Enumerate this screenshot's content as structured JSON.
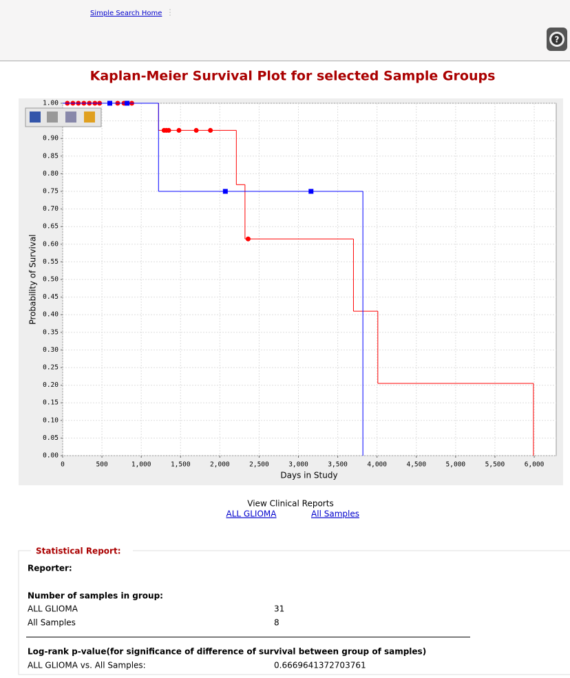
{
  "header": {
    "link": "Simple Search Home"
  },
  "chart_data": {
    "type": "survival-step",
    "title": "Kaplan-Meier Survival Plot for selected Sample Groups",
    "xlabel": "Days in Study",
    "ylabel": "Probability of Survival",
    "xlim": [
      0,
      6280
    ],
    "ylim": [
      0,
      1
    ],
    "xticks": [
      0,
      500,
      {
        "value": 1000,
        "label": "1,000"
      },
      {
        "value": 1500,
        "label": "1,500"
      },
      {
        "value": 2000,
        "label": "2,000"
      },
      {
        "value": 2500,
        "label": "2,500"
      },
      {
        "value": 3000,
        "label": "3,000"
      },
      {
        "value": 3500,
        "label": "3,500"
      },
      {
        "value": 4000,
        "label": "4,000"
      },
      {
        "value": 4500,
        "label": "4,500"
      },
      {
        "value": 5000,
        "label": "5,000"
      },
      {
        "value": 5500,
        "label": "5,500"
      },
      {
        "value": 6000,
        "label": "6,000"
      }
    ],
    "yticks": [
      {
        "value": 0,
        "label": "0.00"
      },
      {
        "value": 0.05,
        "label": "0.05"
      },
      {
        "value": 0.1,
        "label": "0.10"
      },
      {
        "value": 0.15,
        "label": "0.15"
      },
      {
        "value": 0.2,
        "label": "0.20"
      },
      {
        "value": 0.25,
        "label": "0.25"
      },
      {
        "value": 0.3,
        "label": "0.30"
      },
      {
        "value": 0.35,
        "label": "0.35"
      },
      {
        "value": 0.4,
        "label": "0.40"
      },
      {
        "value": 0.45,
        "label": "0.45"
      },
      {
        "value": 0.5,
        "label": "0.50"
      },
      {
        "value": 0.55,
        "label": "0.55"
      },
      {
        "value": 0.6,
        "label": "0.60"
      },
      {
        "value": 0.65,
        "label": "0.65"
      },
      {
        "value": 0.7,
        "label": "0.70"
      },
      {
        "value": 0.75,
        "label": "0.75"
      },
      {
        "value": 0.8,
        "label": "0.80"
      },
      {
        "value": 0.85,
        "label": "0.85"
      },
      {
        "value": 0.9,
        "label": "0.90"
      },
      {
        "value": 0.95,
        "label": "0.95"
      },
      {
        "value": 1,
        "label": "1.00"
      }
    ],
    "grid": true,
    "series": [
      {
        "color": "#ff0000",
        "marker": "circle",
        "x": [
          0,
          1220,
          2210,
          2320,
          3700,
          4010,
          5990
        ],
        "values": [
          1,
          0.923,
          0.769,
          0.615,
          0.41,
          0.205,
          0
        ],
        "censored_x": [
          60,
          130,
          200,
          270,
          340,
          410,
          470,
          700,
          780,
          880,
          1290,
          1320,
          1350,
          1480,
          1700,
          1880,
          2360
        ],
        "censored_values": [
          1,
          1,
          1,
          1,
          1,
          1,
          1,
          1,
          1,
          1,
          0.923,
          0.923,
          0.923,
          0.923,
          0.923,
          0.923,
          0.615
        ]
      },
      {
        "color": "#0000ff",
        "marker": "square",
        "x": [
          0,
          1220,
          3820
        ],
        "values": [
          1,
          0.75,
          0
        ],
        "censored_x": [
          600,
          820,
          2070,
          3160
        ],
        "censored_values": [
          1,
          1,
          0.75,
          0.75
        ]
      }
    ]
  },
  "reports": {
    "title": "View Clinical Reports",
    "links": [
      "ALL GLIOMA",
      "All Samples"
    ]
  },
  "report": {
    "legend": "Statistical Report:",
    "reporter": "Reporter:",
    "samples_heading": "Number of samples in group:",
    "rows": [
      [
        "ALL GLIOMA",
        31
      ],
      [
        "All Samples",
        8
      ]
    ],
    "pvalue_heading": "Log-rank p-value(for significance of difference of survival between group of samples)",
    "comparison": [
      "ALL GLIOMA vs. All Samples:",
      0.6669641372703761
    ]
  }
}
